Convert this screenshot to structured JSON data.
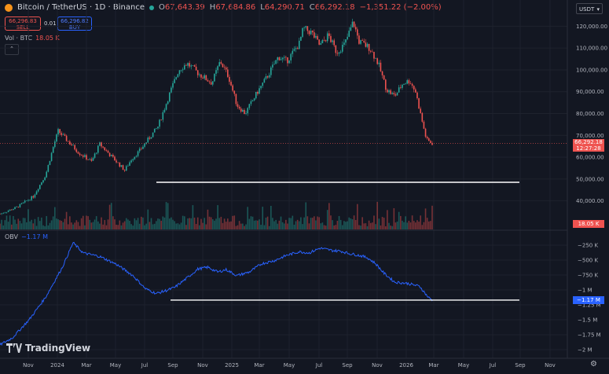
{
  "header": {
    "pair": "Bitcoin / TetherUS · 1D · Binance",
    "ohlc": [
      {
        "key": "O",
        "value": "67,643.39"
      },
      {
        "key": "H",
        "value": "67,684.86"
      },
      {
        "key": "L",
        "value": "64,290.71"
      },
      {
        "key": "C",
        "value": "66,292.18"
      }
    ],
    "change": "−1,351.22 (−2.00%)"
  },
  "trade": {
    "sell_price": "66,296.83",
    "sell_label": "SELL",
    "spread": "0.01",
    "buy_price": "66,296.82",
    "buy_label": "BUY"
  },
  "volume_indicator": {
    "name": "Vol · BTC",
    "value": "18.05 K"
  },
  "obv_indicator": {
    "name": "OBV",
    "value": "−1.17 M"
  },
  "currency_button": "USDT",
  "price_axis": [
    "120,000.00",
    "110,000.00",
    "100,000.00",
    "90,000.00",
    "80,000.00",
    "70,000.00",
    "60,000.00",
    "50,000.00",
    "40,000.00"
  ],
  "price_tag": {
    "price": "66,292.18",
    "countdown": "12:27:28"
  },
  "volume_tag": "18.05 K",
  "obv_axis": [
    "−250 K",
    "−500 K",
    "−750 K",
    "−1 M",
    "−1.25 M",
    "−1.5 M",
    "−1.75 M",
    "−2 M"
  ],
  "obv_tag": "−1.17 M",
  "time_axis": [
    "Nov",
    "2024",
    "Mar",
    "May",
    "Jul",
    "Sep",
    "Nov",
    "2025",
    "Mar",
    "May",
    "Jul",
    "Sep",
    "Nov",
    "2026",
    "Mar",
    "May",
    "Jul",
    "Sep",
    "Nov"
  ],
  "brand": "TradingView",
  "colors": {
    "background": "#131722",
    "up": "#26a69a",
    "down": "#ef5350",
    "obv_line": "#2962ff",
    "support_line": "#ffffff"
  },
  "chart_data": {
    "type": "line",
    "series": [
      {
        "name": "BTCUSDT",
        "values_anchor": [
          [
            0,
            34000
          ],
          [
            20,
            37000
          ],
          [
            40,
            42000
          ],
          [
            55,
            52000
          ],
          [
            65,
            66000
          ],
          [
            70,
            72000
          ],
          [
            80,
            68000
          ],
          [
            95,
            62000
          ],
          [
            110,
            58000
          ],
          [
            120,
            66000
          ],
          [
            130,
            62000
          ],
          [
            140,
            58000
          ],
          [
            150,
            54000
          ],
          [
            158,
            59000
          ],
          [
            168,
            63000
          ],
          [
            178,
            68000
          ],
          [
            190,
            74000
          ],
          [
            205,
            90000
          ],
          [
            215,
            100000
          ],
          [
            225,
            103000
          ],
          [
            240,
            98000
          ],
          [
            255,
            94000
          ],
          [
            265,
            104000
          ],
          [
            275,
            97000
          ],
          [
            285,
            84000
          ],
          [
            295,
            80000
          ],
          [
            310,
            90000
          ],
          [
            320,
            96000
          ],
          [
            335,
            106000
          ],
          [
            345,
            104000
          ],
          [
            360,
            112000
          ],
          [
            365,
            119000
          ],
          [
            375,
            117000
          ],
          [
            385,
            111000
          ],
          [
            395,
            116000
          ],
          [
            405,
            108000
          ],
          [
            415,
            112000
          ],
          [
            425,
            122000
          ],
          [
            432,
            113000
          ],
          [
            445,
            110000
          ],
          [
            455,
            103000
          ],
          [
            465,
            91000
          ],
          [
            475,
            88000
          ],
          [
            485,
            94000
          ],
          [
            493,
            95000
          ],
          [
            500,
            90000
          ],
          [
            507,
            78000
          ],
          [
            513,
            68000
          ],
          [
            520,
            66292
          ]
        ]
      },
      {
        "name": "OBV",
        "values_anchor": [
          [
            0,
            -1920000
          ],
          [
            15,
            -1800000
          ],
          [
            35,
            -1500000
          ],
          [
            55,
            -1120000
          ],
          [
            75,
            -620000
          ],
          [
            88,
            -210000
          ],
          [
            100,
            -380000
          ],
          [
            120,
            -440000
          ],
          [
            140,
            -570000
          ],
          [
            160,
            -760000
          ],
          [
            175,
            -980000
          ],
          [
            188,
            -1060000
          ],
          [
            200,
            -1010000
          ],
          [
            210,
            -960000
          ],
          [
            225,
            -800000
          ],
          [
            238,
            -650000
          ],
          [
            250,
            -620000
          ],
          [
            262,
            -700000
          ],
          [
            272,
            -660000
          ],
          [
            285,
            -760000
          ],
          [
            300,
            -700000
          ],
          [
            315,
            -560000
          ],
          [
            330,
            -510000
          ],
          [
            345,
            -420000
          ],
          [
            360,
            -360000
          ],
          [
            372,
            -380000
          ],
          [
            385,
            -300000
          ],
          [
            400,
            -340000
          ],
          [
            410,
            -350000
          ],
          [
            420,
            -390000
          ],
          [
            432,
            -420000
          ],
          [
            442,
            -460000
          ],
          [
            452,
            -560000
          ],
          [
            462,
            -720000
          ],
          [
            475,
            -870000
          ],
          [
            490,
            -890000
          ],
          [
            505,
            -940000
          ],
          [
            515,
            -1120000
          ],
          [
            520,
            -1170000
          ]
        ]
      }
    ],
    "horizontal_lines": [
      {
        "panel": "price",
        "value": 48500
      },
      {
        "panel": "obv",
        "value": -1170000
      }
    ],
    "ylim_price": [
      30000,
      125000
    ],
    "ylim_obv": [
      -2050000,
      -50000
    ]
  }
}
